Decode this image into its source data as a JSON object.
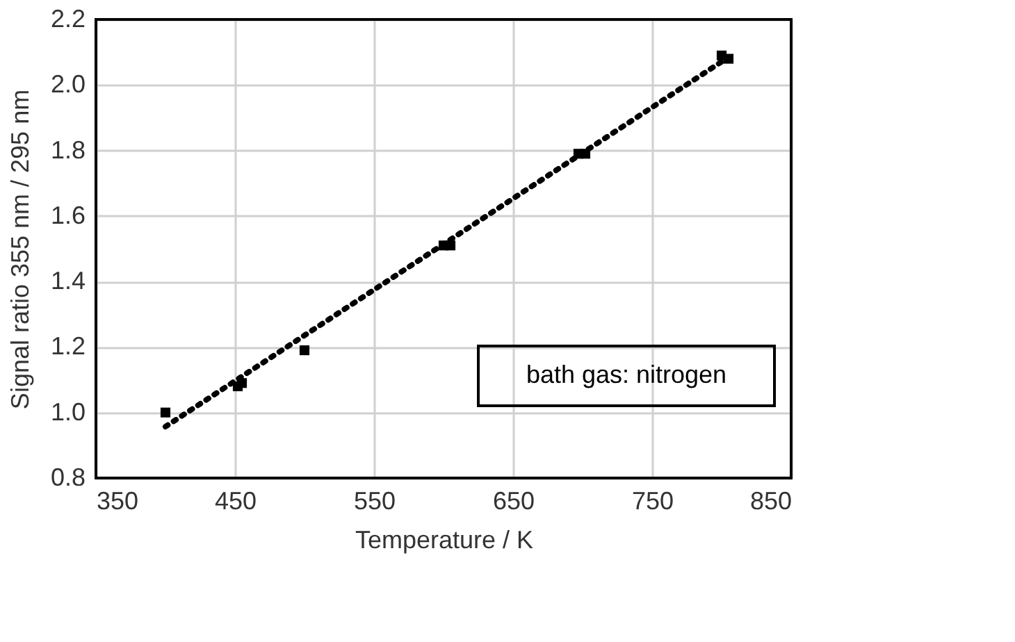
{
  "chart_data": {
    "type": "scatter",
    "xlabel": "Temperature / K",
    "ylabel": "Signal ratio 355 nm / 295 nm",
    "series": [
      {
        "color": "#000000",
        "marker": "square",
        "x": [
          400,
          452,
          455,
          500,
          600,
          605,
          697,
          702,
          800,
          805
        ],
        "values": [
          1.0,
          1.08,
          1.09,
          1.19,
          1.51,
          1.51,
          1.79,
          1.79,
          2.09,
          2.08
        ]
      },
      {
        "type": "line",
        "color": "#000000",
        "line_style": "dotted",
        "x": [
          400,
          805
        ],
        "values": [
          0.957,
          2.085
        ]
      }
    ],
    "xlim": [
      350,
      850
    ],
    "xticks": [
      350,
      450,
      550,
      650,
      750,
      850
    ],
    "ylim": [
      0.8,
      2.2
    ],
    "yticks": [
      0.8,
      {
        "value": 1,
        "label": "1.0"
      },
      1.2,
      1.4,
      1.6,
      1.8,
      {
        "value": 2,
        "label": "2.0"
      },
      2.2
    ],
    "grid": true,
    "annotations": [
      "bath gas: nitrogen"
    ]
  }
}
